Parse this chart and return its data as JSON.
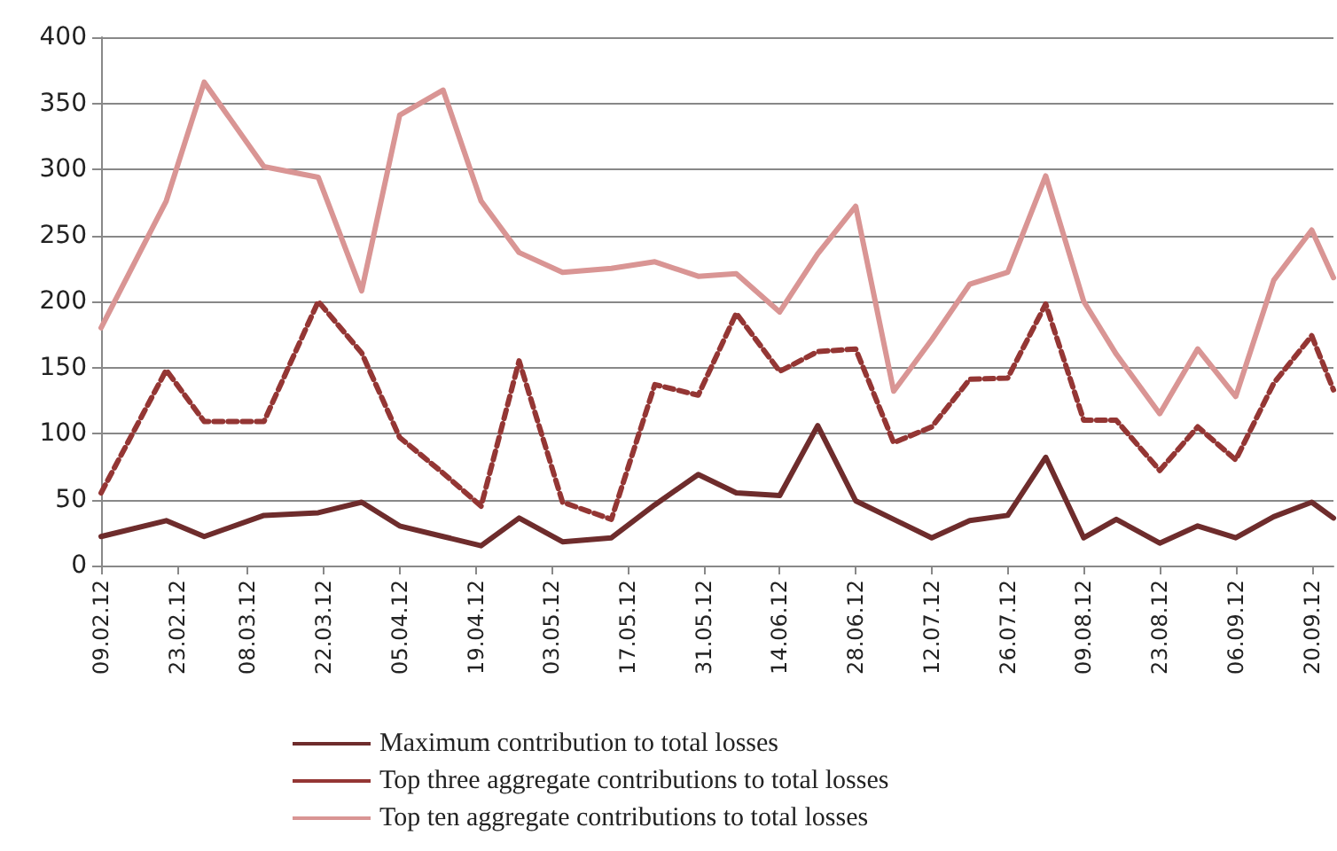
{
  "chart_data": {
    "type": "line",
    "x": [
      "--02-09",
      "--02-21",
      "--02-28",
      "--03-11",
      "--03-21",
      "--03-29",
      "--04-05",
      "--04-13",
      "--04-20",
      "--04-27",
      "--05-05",
      "--05-14",
      "--05-22",
      "--05-30",
      "--06-06",
      "--06-14",
      "--06-21",
      "--06-28",
      "--07-05",
      "--07-12",
      "--07-19",
      "--07-26",
      "--08-02",
      "--08-09",
      "--08-15",
      "--08-23",
      "--08-30",
      "--09-06",
      "--09-13",
      "--09-20",
      "--09-24"
    ],
    "series": [
      {
        "name": "Maximum contribution to total losses",
        "color": "#6e2c2c",
        "line_style": "solid",
        "values": [
          22,
          34,
          22,
          38,
          40,
          48,
          30,
          22,
          15,
          36,
          18,
          21,
          46,
          69,
          55,
          53,
          106,
          49,
          35,
          21,
          34,
          38,
          82,
          21,
          35,
          17,
          30,
          21,
          37,
          48,
          36
        ]
      },
      {
        "name": "Top three aggregate contributions to total losses",
        "color": "#943634",
        "line_style": "dashed",
        "values": [
          55,
          148,
          109,
          109,
          200,
          161,
          97,
          70,
          45,
          155,
          48,
          35,
          137,
          129,
          191,
          147,
          162,
          164,
          93,
          105,
          141,
          142,
          198,
          110,
          110,
          72,
          105,
          80,
          138,
          174,
          133
        ]
      },
      {
        "name": "Top ten aggregate contributions to total losses",
        "color": "#d99594",
        "line_style": "solid",
        "values": [
          180,
          276,
          366,
          302,
          294,
          208,
          341,
          360,
          276,
          237,
          222,
          225,
          230,
          219,
          221,
          192,
          236,
          272,
          132,
          171,
          213,
          222,
          295,
          200,
          160,
          115,
          164,
          128,
          216,
          254,
          218
        ]
      }
    ],
    "xlim": [
      "--02-09",
      "--09-24"
    ],
    "xticks": [
      {
        "value": "--02-09",
        "label": "09.02.12"
      },
      {
        "value": "--02-23",
        "label": "23.02.12"
      },
      {
        "value": "--03-08",
        "label": "08.03.12"
      },
      {
        "value": "--03-22",
        "label": "22.03.12"
      },
      {
        "value": "--04-05",
        "label": "05.04.12"
      },
      {
        "value": "--04-19",
        "label": "19.04.12"
      },
      {
        "value": "--05-03",
        "label": "03.05.12"
      },
      {
        "value": "--05-17",
        "label": "17.05.12"
      },
      {
        "value": "--05-31",
        "label": "31.05.12"
      },
      {
        "value": "--06-14",
        "label": "14.06.12"
      },
      {
        "value": "--06-28",
        "label": "28.06.12"
      },
      {
        "value": "--07-12",
        "label": "12.07.12"
      },
      {
        "value": "--07-26",
        "label": "26.07.12"
      },
      {
        "value": "--08-09",
        "label": "09.08.12"
      },
      {
        "value": "--08-23",
        "label": "23.08.12"
      },
      {
        "value": "--09-06",
        "label": "06.09.12"
      },
      {
        "value": "--09-20",
        "label": "20.09.12"
      }
    ],
    "ylim": [
      0,
      400
    ],
    "yticks": [
      0,
      50,
      100,
      150,
      200,
      250,
      300,
      350,
      400
    ],
    "grid": "y",
    "legend": "bottom",
    "marker": "none"
  }
}
